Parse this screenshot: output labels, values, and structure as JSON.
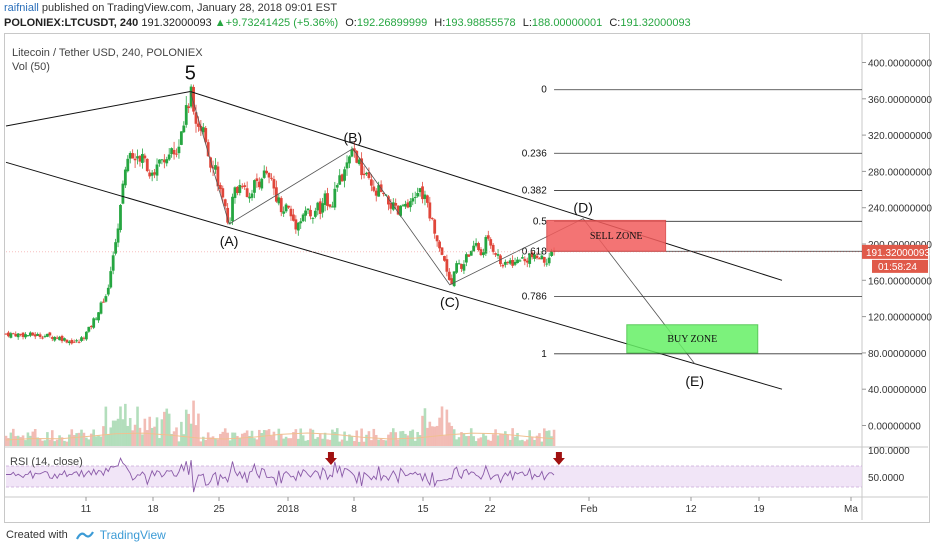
{
  "header": {
    "author": "raifniall",
    "published_text": "published on TradingView.com, January 28, 2018 09:01 EST",
    "symbol": "POLONIEX:LTCUSDT, 240",
    "last": "191.32000093",
    "change": "+9.73241425 (+5.36%)",
    "o_label": "O:",
    "o_value": "192.26899999",
    "h_label": "H:",
    "h_value": "193.98855578",
    "l_label": "L:",
    "l_value": "188.00000001",
    "c_label": "C:",
    "c_value": "191.32000093"
  },
  "legend": {
    "title": "Litecoin / Tether USD, 240, POLONIEX",
    "volume": "Vol (50)",
    "rsi": "RSI (14, close)"
  },
  "footer": {
    "created_with": "Created with",
    "brand": "TradingView"
  },
  "colors": {
    "up": "#26a641",
    "down": "#e0463a",
    "sell_zone": "#f25c5c",
    "buy_zone": "#66f066",
    "rsi_band": "#e8d3f2"
  },
  "chart_data": {
    "type": "candlestick",
    "price_axis": {
      "min": 0,
      "max": 400,
      "ticks": [
        "400.00000000",
        "360.00000000",
        "320.00000000",
        "280.00000000",
        "240.00000000",
        "200.00000000",
        "160.00000000",
        "120.00000000",
        "80.00000000",
        "40.00000000",
        "0.00000000"
      ]
    },
    "last_price_label": "191.32000093",
    "countdown_label": "01:58:24",
    "x_ticks": [
      "11",
      "18",
      "25",
      "2018",
      "8",
      "15",
      "22",
      "Feb",
      "12",
      "19",
      "Ma"
    ],
    "rsi_axis": {
      "ticks": [
        "100.0000",
        "50.0000"
      ]
    },
    "price_path": [
      [
        0,
        101
      ],
      [
        4,
        100
      ],
      [
        8,
        99
      ],
      [
        11,
        97
      ],
      [
        13,
        93
      ],
      [
        15,
        92
      ],
      [
        17,
        105
      ],
      [
        19,
        125
      ],
      [
        21,
        150
      ],
      [
        22.5,
        195
      ],
      [
        23.5,
        240
      ],
      [
        24.5,
        285
      ],
      [
        26,
        305
      ],
      [
        27,
        290
      ],
      [
        28.5,
        300
      ],
      [
        30,
        270
      ],
      [
        31.5,
        295
      ],
      [
        33,
        282
      ],
      [
        34,
        310
      ],
      [
        35,
        300
      ],
      [
        36,
        325
      ],
      [
        37,
        345
      ],
      [
        38,
        368
      ],
      [
        39,
        340
      ],
      [
        40,
        318
      ],
      [
        41,
        320
      ],
      [
        42,
        292
      ],
      [
        43,
        290
      ],
      [
        44,
        262
      ],
      [
        45,
        238
      ],
      [
        46,
        222
      ],
      [
        47,
        258
      ],
      [
        48,
        262
      ],
      [
        49,
        272
      ],
      [
        50,
        250
      ],
      [
        51,
        265
      ],
      [
        52,
        268
      ],
      [
        53,
        278
      ],
      [
        55,
        265
      ],
      [
        56,
        250
      ],
      [
        57,
        238
      ],
      [
        58,
        242
      ],
      [
        59,
        228
      ],
      [
        60,
        220
      ],
      [
        61,
        232
      ],
      [
        62,
        238
      ],
      [
        63,
        225
      ],
      [
        64,
        242
      ],
      [
        65,
        235
      ],
      [
        66,
        252
      ],
      [
        67,
        243
      ],
      [
        68,
        262
      ],
      [
        69,
        270
      ],
      [
        70,
        280
      ],
      [
        71,
        295
      ],
      [
        72,
        302
      ],
      [
        73,
        282
      ],
      [
        74,
        275
      ],
      [
        75,
        265
      ],
      [
        76,
        252
      ],
      [
        77,
        260
      ],
      [
        78,
        248
      ],
      [
        79,
        246
      ],
      [
        80,
        238
      ],
      [
        81,
        232
      ],
      [
        82,
        245
      ],
      [
        83,
        236
      ],
      [
        84,
        248
      ],
      [
        85,
        260
      ],
      [
        86,
        252
      ],
      [
        87,
        242
      ],
      [
        88,
        222
      ],
      [
        89,
        205
      ],
      [
        90,
        188
      ],
      [
        91,
        170
      ],
      [
        92,
        158
      ],
      [
        93,
        180
      ],
      [
        94,
        172
      ],
      [
        95,
        192
      ],
      [
        96,
        188
      ],
      [
        97,
        200
      ],
      [
        98,
        188
      ],
      [
        99,
        205
      ],
      [
        100,
        198
      ],
      [
        101,
        192
      ],
      [
        102,
        178
      ],
      [
        103,
        175
      ],
      [
        104,
        182
      ],
      [
        105,
        178
      ],
      [
        106,
        186
      ],
      [
        107,
        180
      ],
      [
        108,
        188
      ],
      [
        109,
        183
      ],
      [
        110,
        186
      ],
      [
        111,
        182
      ],
      [
        112,
        185
      ],
      [
        113,
        190
      ]
    ],
    "wave_labels": [
      {
        "text": "5",
        "x": 38,
        "y": 368
      },
      {
        "text": "(A)",
        "x": 46,
        "y": 222
      },
      {
        "text": "(B)",
        "x": 71.5,
        "y": 305
      },
      {
        "text": "(C)",
        "x": 91.5,
        "y": 155
      },
      {
        "text": "(D)",
        "x": 119,
        "y": 228
      },
      {
        "text": "(E)",
        "x": 142,
        "y": 68
      }
    ],
    "wave_path": [
      [
        38,
        368
      ],
      [
        46,
        222
      ],
      [
        71.5,
        305
      ],
      [
        91.5,
        155
      ],
      [
        119,
        228
      ],
      [
        142,
        68
      ]
    ],
    "channel": {
      "upper": [
        [
          0,
          330
        ],
        [
          38,
          368
        ],
        [
          160,
          160
        ]
      ],
      "lower": [
        [
          0,
          290
        ],
        [
          160,
          40
        ]
      ]
    },
    "fibonacci": [
      {
        "level": "0",
        "price": 370
      },
      {
        "level": "0.236",
        "price": 300
      },
      {
        "level": "0.382",
        "price": 259
      },
      {
        "level": "0.5",
        "price": 225
      },
      {
        "level": "0.618",
        "price": 192
      },
      {
        "level": "0.786",
        "price": 142
      },
      {
        "level": "1",
        "price": 79
      }
    ],
    "zones": [
      {
        "label": "SELL ZONE",
        "x_from": 111.5,
        "x_to": 136,
        "price_from": 192,
        "price_to": 226
      },
      {
        "label": "BUY ZONE",
        "x_from": 128,
        "x_to": 155,
        "price_from": 80,
        "price_to": 111
      }
    ],
    "rsi_markers": [
      {
        "x": 67,
        "direction": "down"
      },
      {
        "x": 114,
        "direction": "down"
      }
    ]
  }
}
